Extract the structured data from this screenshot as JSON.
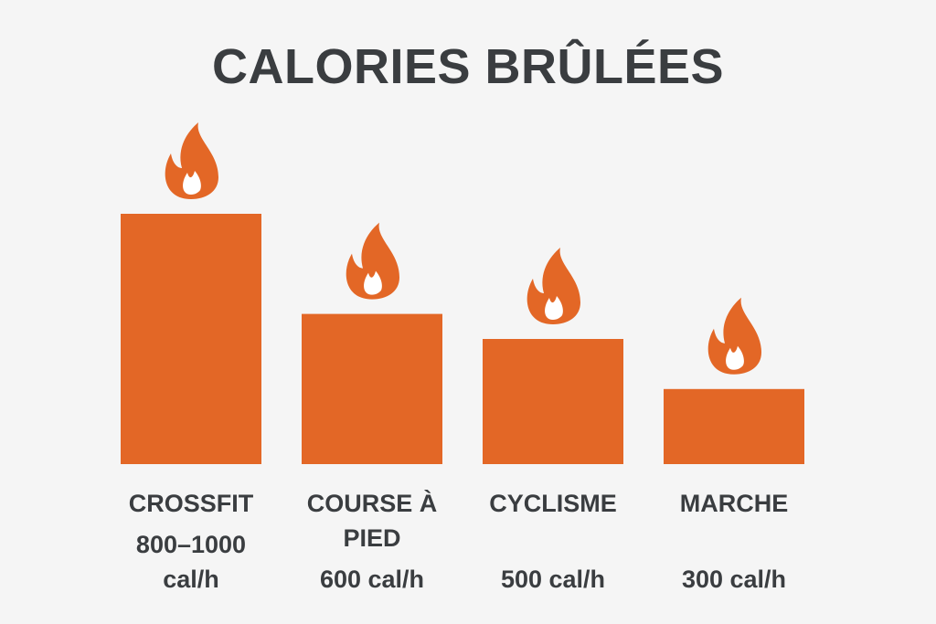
{
  "chart_data": {
    "type": "bar",
    "title": "CALORIES BRÛLÉES",
    "categories": [
      "CROSSFIT",
      "COURSE À PIED",
      "CYCLISME",
      "MARCHE"
    ],
    "values": [
      [
        800,
        1000
      ],
      600,
      500,
      300
    ],
    "value_labels": [
      "800–1000 cal/h",
      "600 cal/h",
      "500 cal/h",
      "300 cal/h"
    ],
    "color": "#e36726"
  }
}
